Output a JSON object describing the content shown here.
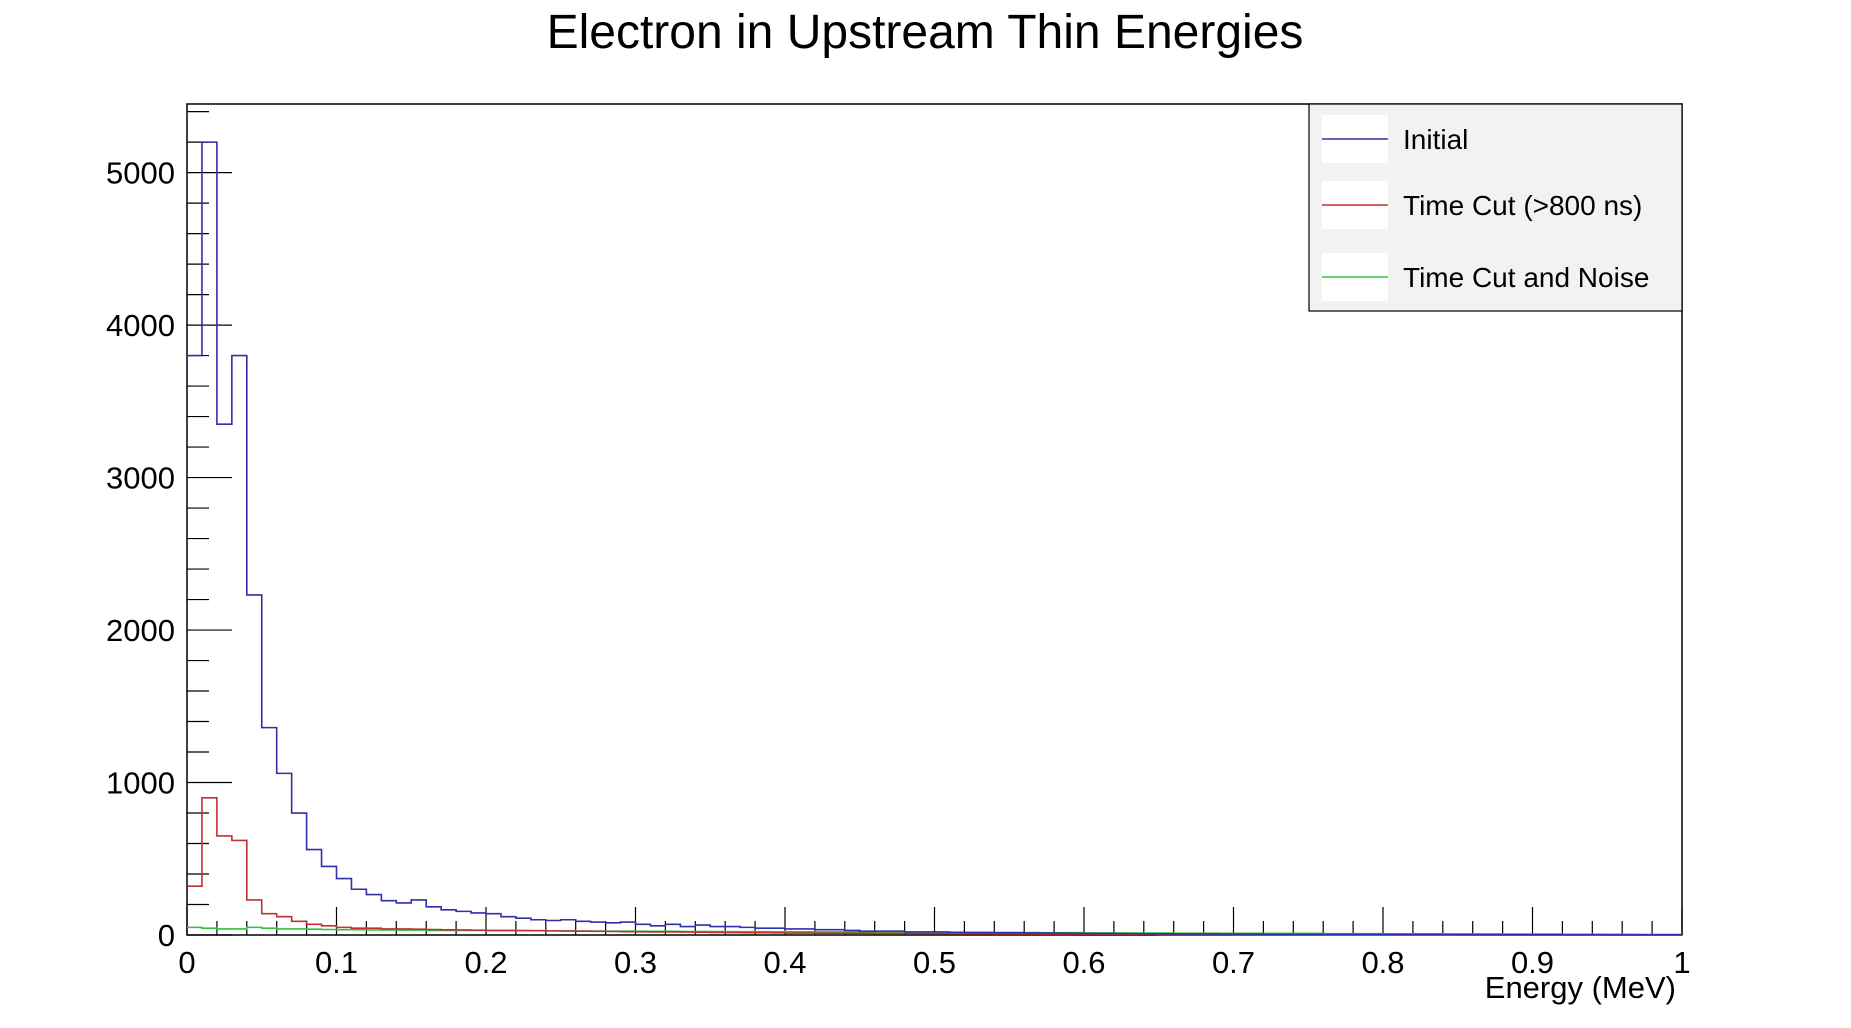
{
  "chart_data": {
    "type": "histogram-line",
    "title": "Electron in Upstream Thin Energies",
    "xlabel": "Energy (MeV)",
    "ylabel": "",
    "xlim": [
      0,
      1
    ],
    "ylim": [
      0,
      5450
    ],
    "x_ticks": [
      "0",
      "0.1",
      "0.2",
      "0.3",
      "0.4",
      "0.5",
      "0.6",
      "0.7",
      "0.8",
      "0.9",
      "1"
    ],
    "y_ticks": [
      "0",
      "1000",
      "2000",
      "3000",
      "4000",
      "5000"
    ],
    "grid": false,
    "legend_position": "top-right",
    "bin_width": 0.01,
    "series": [
      {
        "name": "Initial",
        "color": "#3030a8",
        "values": [
          3800,
          5200,
          3350,
          3800,
          2230,
          1360,
          1060,
          800,
          560,
          450,
          370,
          300,
          265,
          225,
          210,
          230,
          185,
          165,
          155,
          145,
          140,
          120,
          110,
          100,
          95,
          100,
          90,
          85,
          80,
          85,
          70,
          60,
          70,
          55,
          65,
          55,
          55,
          50,
          45,
          45,
          40,
          40,
          35,
          35,
          30,
          25,
          25,
          25,
          20,
          20,
          20,
          18,
          17,
          16,
          15,
          15,
          14,
          13,
          12,
          11,
          10,
          10,
          9,
          9,
          8,
          8,
          7,
          7,
          7,
          6,
          6,
          6,
          5,
          5,
          5,
          5,
          4,
          4,
          4,
          4,
          3,
          3,
          3,
          3,
          3,
          3,
          2,
          2,
          2,
          2,
          2,
          2,
          2,
          2,
          2,
          1,
          1,
          1,
          1,
          1
        ]
      },
      {
        "name": "Time Cut (>800 ns)",
        "color": "#c03030",
        "values": [
          320,
          900,
          650,
          620,
          230,
          140,
          120,
          90,
          70,
          60,
          50,
          45,
          45,
          40,
          40,
          38,
          36,
          34,
          33,
          32,
          30,
          30,
          29,
          28,
          27,
          26,
          25,
          24,
          23,
          22,
          21,
          20,
          20,
          19,
          18,
          17,
          16,
          15,
          15,
          14,
          13,
          13,
          12,
          12,
          11,
          11,
          10,
          10,
          9,
          9,
          9,
          8,
          8,
          8,
          7,
          7,
          7,
          6,
          6,
          6,
          6,
          5,
          5,
          5,
          5,
          4,
          4,
          4,
          4,
          4,
          3,
          3,
          3,
          3,
          3,
          3,
          2,
          2,
          2,
          2,
          2,
          2,
          2,
          2,
          2,
          1,
          1,
          1,
          1,
          1,
          1,
          1,
          1,
          1,
          1,
          1,
          1,
          1,
          1,
          1
        ]
      },
      {
        "name": "Time Cut and Noise",
        "color": "#30c040",
        "values": [
          50,
          45,
          40,
          40,
          50,
          45,
          40,
          40,
          38,
          36,
          35,
          35,
          33,
          33,
          32,
          32,
          30,
          30,
          30,
          30,
          29,
          29,
          28,
          28,
          27,
          27,
          26,
          26,
          25,
          25,
          24,
          24,
          24,
          23,
          23,
          23,
          22,
          22,
          22,
          21,
          21,
          21,
          20,
          20,
          20,
          19,
          19,
          19,
          18,
          18,
          18,
          17,
          17,
          17,
          16,
          16,
          16,
          15,
          15,
          15,
          14,
          14,
          14,
          13,
          13,
          13,
          12,
          12,
          12,
          11,
          11,
          11,
          10,
          10,
          10,
          10,
          9,
          9,
          9,
          9,
          8,
          8,
          8,
          8,
          7,
          7,
          7,
          7,
          6,
          6,
          6,
          6,
          5,
          5,
          5,
          5,
          5,
          4,
          4,
          4
        ]
      }
    ]
  }
}
